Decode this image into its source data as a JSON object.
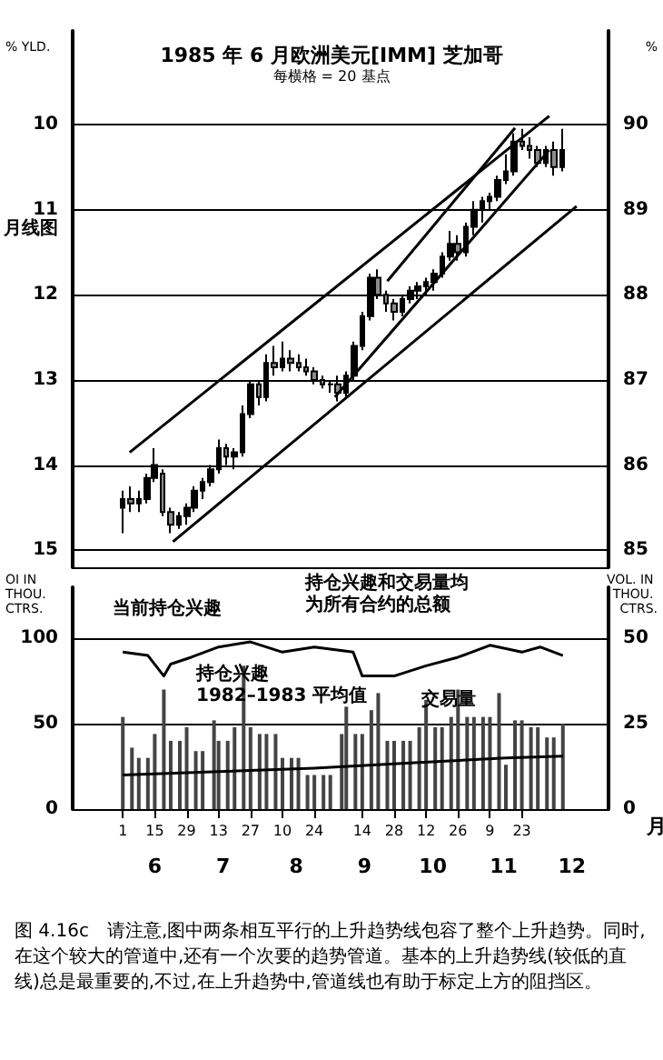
{
  "chart_data": [
    {
      "type": "candlestick",
      "title": "1985 年 6 月欧洲美元[IMM] 芝加哥",
      "subtitle": "每横格 = 20 基点",
      "ylabel": "%",
      "y2label": "% YLD.",
      "xlim": [
        "--05-10",
        "--12-31"
      ],
      "ylim": [
        84.8,
        91.1
      ],
      "yticks": [
        85,
        86,
        87,
        88,
        89,
        90
      ],
      "y2lim": [
        15.2,
        8.9
      ],
      "y2ticks": [
        10,
        11,
        12,
        13,
        14,
        15
      ],
      "tick_labels": "y",
      "grid": "y",
      "annotations": [
        "月线图"
      ],
      "series": [
        {
          "color": "#000000",
          "x": [
            "--06-01",
            "--06-04T12:00",
            "--06-08",
            "--06-11T12:00",
            "--06-15",
            "--06-18T12:00",
            "--06-22",
            "--06-25T12:00",
            "--06-29",
            "--07-02T12:00",
            "--07-06",
            "--07-09T12:00",
            "--07-13",
            "--07-16T12:00",
            "--07-20",
            "--07-23T12:00",
            "--07-27",
            "--07-30T12:00",
            "--08-03",
            "--08-06T12:00",
            "--08-10",
            "--08-13T12:00",
            "--08-17",
            "--08-20T12:00",
            "--08-24",
            "--08-27T12:00",
            "--08-31",
            "--09-03T12:00",
            "--09-07",
            "--09-10T12:00",
            "--09-14",
            "--09-17T12:00",
            "--09-21",
            "--09-24T12:00",
            "--09-28",
            "--10-01T12:00",
            "--10-05",
            "--10-08T12:00",
            "--10-12",
            "--10-15T12:00",
            "--10-19",
            "--10-22T12:00",
            "--10-26",
            "--10-29T12:00",
            "--11-02",
            "--11-05T12:00",
            "--11-09",
            "--11-12T12:00",
            "--11-16",
            "--11-19T12:00",
            "--11-23",
            "--11-26T12:00",
            "--11-30",
            "--12-03T12:00",
            "--12-07",
            "--12-10T12:00"
          ],
          "ohlc": [
            [
              85.5,
              85.7,
              85.2,
              85.6
            ],
            [
              85.6,
              85.75,
              85.45,
              85.55
            ],
            [
              85.55,
              85.7,
              85.45,
              85.6
            ],
            [
              85.6,
              85.9,
              85.55,
              85.85
            ],
            [
              85.85,
              86.2,
              85.8,
              86.0
            ],
            [
              85.9,
              85.95,
              85.4,
              85.45
            ],
            [
              85.45,
              85.5,
              85.2,
              85.3
            ],
            [
              85.3,
              85.45,
              85.25,
              85.4
            ],
            [
              85.4,
              85.55,
              85.3,
              85.5
            ],
            [
              85.5,
              85.75,
              85.45,
              85.7
            ],
            [
              85.7,
              85.85,
              85.6,
              85.8
            ],
            [
              85.8,
              86.0,
              85.75,
              85.95
            ],
            [
              85.95,
              86.3,
              85.9,
              86.2
            ],
            [
              86.2,
              86.25,
              86.0,
              86.1
            ],
            [
              86.1,
              86.2,
              85.95,
              86.15
            ],
            [
              86.15,
              86.7,
              86.1,
              86.6
            ],
            [
              86.6,
              87.0,
              86.55,
              86.95
            ],
            [
              86.95,
              87.0,
              86.7,
              86.8
            ],
            [
              86.8,
              87.3,
              86.75,
              87.2
            ],
            [
              87.2,
              87.4,
              87.05,
              87.15
            ],
            [
              87.15,
              87.45,
              87.1,
              87.25
            ],
            [
              87.25,
              87.35,
              87.1,
              87.2
            ],
            [
              87.2,
              87.3,
              87.1,
              87.15
            ],
            [
              87.15,
              87.25,
              87.05,
              87.1
            ],
            [
              87.1,
              87.15,
              86.95,
              87.0
            ],
            [
              87.0,
              87.05,
              86.9,
              86.95
            ],
            [
              86.95,
              87.0,
              86.85,
              86.95
            ],
            [
              86.95,
              87.05,
              86.75,
              86.85
            ],
            [
              86.85,
              87.1,
              86.8,
              87.05
            ],
            [
              87.05,
              87.45,
              87.0,
              87.4
            ],
            [
              87.4,
              87.8,
              87.35,
              87.75
            ],
            [
              87.75,
              88.25,
              87.7,
              88.2
            ],
            [
              88.2,
              88.3,
              87.95,
              88.0
            ],
            [
              88.0,
              88.05,
              87.8,
              87.9
            ],
            [
              87.9,
              87.95,
              87.7,
              87.8
            ],
            [
              87.8,
              88.0,
              87.75,
              87.95
            ],
            [
              87.95,
              88.1,
              87.9,
              88.05
            ],
            [
              88.05,
              88.15,
              87.95,
              88.1
            ],
            [
              88.1,
              88.2,
              88.0,
              88.15
            ],
            [
              88.15,
              88.3,
              88.05,
              88.25
            ],
            [
              88.25,
              88.5,
              88.2,
              88.45
            ],
            [
              88.45,
              88.75,
              88.4,
              88.6
            ],
            [
              88.6,
              88.7,
              88.4,
              88.5
            ],
            [
              88.5,
              88.85,
              88.45,
              88.8
            ],
            [
              88.8,
              89.1,
              88.7,
              89.0
            ],
            [
              89.0,
              89.15,
              88.85,
              89.1
            ],
            [
              89.1,
              89.2,
              89.0,
              89.15
            ],
            [
              89.15,
              89.4,
              89.1,
              89.35
            ],
            [
              89.35,
              89.65,
              89.3,
              89.45
            ],
            [
              89.45,
              89.9,
              89.4,
              89.8
            ],
            [
              89.8,
              89.95,
              89.7,
              89.75
            ],
            [
              89.75,
              89.85,
              89.6,
              89.7
            ],
            [
              89.7,
              89.75,
              89.5,
              89.55
            ],
            [
              89.55,
              89.75,
              89.5,
              89.7
            ],
            [
              89.7,
              89.8,
              89.4,
              89.5
            ],
            [
              89.5,
              89.95,
              89.45,
              89.7
            ]
          ]
        },
        {
          "type": "line",
          "color": "#000000",
          "x": [
            "--06-04",
            "--12-05"
          ],
          "values": [
            86.15,
            90.1
          ]
        },
        {
          "type": "line",
          "color": "#000000",
          "x": [
            "--09-25",
            "--11-20"
          ],
          "values": [
            88.16,
            89.96
          ]
        },
        {
          "type": "line",
          "color": "#000000",
          "x": [
            "--09-02",
            "--12-05"
          ],
          "values": [
            86.8,
            89.7
          ]
        },
        {
          "type": "line",
          "color": "#000000",
          "x": [
            "--06-23",
            "--12-17"
          ],
          "values": [
            85.1,
            89.04
          ]
        }
      ]
    },
    {
      "type": "bar",
      "ylabel": "OI IN THOU. CTRS.",
      "y2label": "VOL. IN THOU. CTRS.",
      "x2label": "月",
      "xlim": [
        "--05-10",
        "--12-31"
      ],
      "ylim": [
        0,
        130
      ],
      "yticks": [
        0,
        50,
        100
      ],
      "y2lim": [
        0,
        65
      ],
      "y2ticks": [
        0,
        25,
        50
      ],
      "grid": "y",
      "xticks": [
        {
          "value": "--06-01",
          "label": "1"
        },
        {
          "value": "--06-15",
          "label": "15"
        },
        {
          "value": "--06-29",
          "label": "29"
        },
        {
          "value": "--07-13",
          "label": "13"
        },
        {
          "value": "--07-27",
          "label": "27"
        },
        {
          "value": "--08-10",
          "label": "10"
        },
        {
          "value": "--08-24",
          "label": "24"
        },
        {
          "value": "--09-14",
          "label": "14"
        },
        {
          "value": "--09-28",
          "label": "28"
        },
        {
          "value": "--10-12",
          "label": "12"
        },
        {
          "value": "--10-26",
          "label": "26"
        },
        {
          "value": "--11-09",
          "label": "9"
        },
        {
          "value": "--11-23",
          "label": "23"
        }
      ],
      "x2lim": [
        "--05-10",
        "--12-31"
      ],
      "x2ticks": [
        {
          "value": "--06-15",
          "label": "6"
        },
        {
          "value": "--07-15",
          "label": "7"
        },
        {
          "value": "--08-16",
          "label": "8"
        },
        {
          "value": "--09-15",
          "label": "9"
        },
        {
          "value": "--10-15",
          "label": "10"
        },
        {
          "value": "--11-15",
          "label": "11"
        },
        {
          "value": "--12-15",
          "label": "12"
        }
      ],
      "annotations": [
        "当前持仓兴趣",
        "持仓兴趣和交易量均为所有合约的总额",
        "持仓兴趣\n1982–1983 平均值",
        "交易量",
        "图 4.16c　请注意,图中两条相互平行的上升趋势线包容了整个上升趋势。同时,在这个较大的管道中,还有一个次要的趋势管道。基本的上升趋势线(较低的直线)总是最重要的,不过,在上升趋势中,管道线也有助于标定上方的阻挡区。"
      ],
      "series": [
        {
          "axis": "y2",
          "color": "#444444",
          "x": [
            "--06-01",
            "--06-05",
            "--06-08",
            "--06-12",
            "--06-15",
            "--06-19",
            "--06-22",
            "--06-26",
            "--06-29",
            "--07-03",
            "--07-06",
            "--07-11",
            "--07-13",
            "--07-17",
            "--07-20",
            "--07-24",
            "--07-27",
            "--07-31",
            "--08-03",
            "--08-07",
            "--08-10",
            "--08-14",
            "--08-17",
            "--08-21",
            "--08-24",
            "--08-28",
            "--08-31",
            "--09-05",
            "--09-07",
            "--09-11",
            "--09-14",
            "--09-18",
            "--09-21",
            "--09-25",
            "--09-28",
            "--10-02",
            "--10-05",
            "--10-09",
            "--10-12",
            "--10-16",
            "--10-19",
            "--10-23",
            "--10-26",
            "--10-30",
            "--11-02",
            "--11-06",
            "--11-09",
            "--11-13",
            "--11-16",
            "--11-20",
            "--11-23",
            "--11-27",
            "--11-30",
            "--12-04",
            "--12-07",
            "--12-11"
          ],
          "values": [
            27,
            18,
            15,
            15,
            22,
            35,
            20,
            20,
            24,
            17,
            17,
            26,
            20,
            20,
            24,
            42,
            24,
            22,
            22,
            22,
            15,
            15,
            15,
            10,
            10,
            10,
            10,
            22,
            30,
            22,
            22,
            29,
            34,
            20,
            20,
            20,
            20,
            24,
            32,
            24,
            24,
            27,
            35,
            27,
            27,
            27,
            27,
            34,
            13,
            26,
            26,
            24,
            24,
            21,
            21,
            25
          ]
        },
        {
          "type": "line",
          "color": "#000000",
          "x": [
            "--06-01",
            "--06-12",
            "--06-19",
            "--06-22",
            "--07-01",
            "--07-13",
            "--07-27",
            "--08-10",
            "--08-24",
            "--09-10",
            "--09-14",
            "--09-28",
            "--10-12",
            "--10-26",
            "--11-09",
            "--11-23",
            "--12-01",
            "--12-11"
          ],
          "values": [
            92,
            90,
            78,
            85,
            89,
            95,
            98,
            92,
            95,
            92,
            78,
            78,
            84,
            89,
            96,
            92,
            95,
            90
          ]
        },
        {
          "type": "line",
          "color": "#000000",
          "x": [
            "--06-01",
            "--07-13",
            "--08-24",
            "--10-05",
            "--11-16",
            "--12-11"
          ],
          "values": [
            20,
            22,
            24,
            27,
            30,
            31
          ]
        }
      ]
    }
  ]
}
